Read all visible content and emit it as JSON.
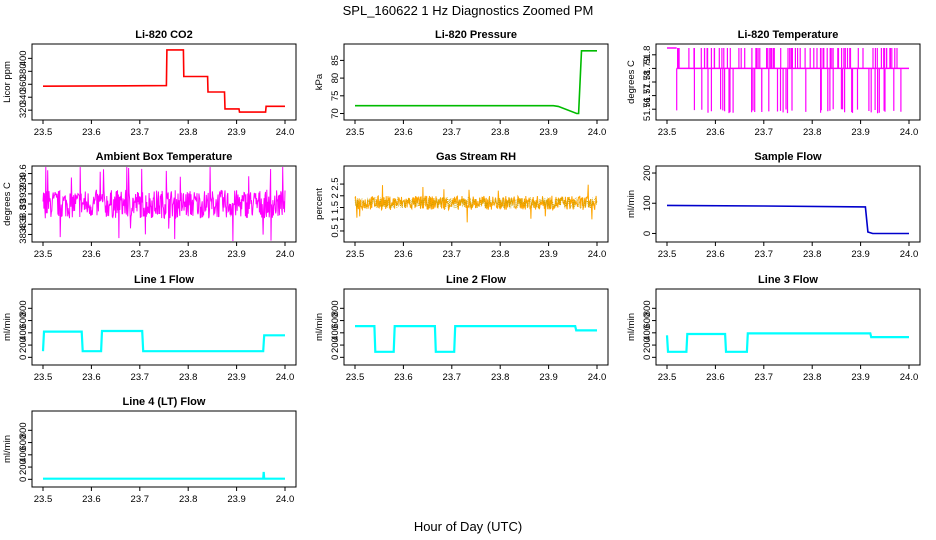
{
  "figure": {
    "title": "SPL_160622  1 Hz Diagnostics Zoomed PM",
    "xlabel": "Hour of Day (UTC)"
  },
  "chart_data": [
    {
      "type": "line",
      "title": "Li-820 CO2",
      "ylabel": "Licor ppm",
      "color": "#ff0000",
      "xlim": [
        23.5,
        24.0
      ],
      "ylim": [
        311,
        416
      ],
      "xticks": [
        "23.5",
        "23.6",
        "23.7",
        "23.8",
        "23.9",
        "24.0"
      ],
      "yticks": [
        320,
        340,
        360,
        380,
        400
      ],
      "x": [
        23.5,
        23.755,
        23.756,
        23.79,
        23.791,
        23.84,
        23.841,
        23.875,
        23.876,
        23.905,
        23.906,
        23.96,
        23.961,
        24.0
      ],
      "y": [
        357,
        358,
        413,
        413,
        372,
        372,
        348,
        348,
        322,
        322,
        317,
        317,
        326,
        326
      ]
    },
    {
      "type": "line",
      "title": "Li-820 Pressure",
      "ylabel": "kPa",
      "color": "#00bb00",
      "xlim": [
        23.5,
        24.0
      ],
      "ylim": [
        69.3,
        88.5
      ],
      "xticks": [
        "23.5",
        "23.6",
        "23.7",
        "23.8",
        "23.9",
        "24.0"
      ],
      "yticks": [
        70,
        75,
        80,
        85
      ],
      "x": [
        23.5,
        23.91,
        23.92,
        23.958,
        23.962,
        23.968,
        24.0
      ],
      "y": [
        72.2,
        72.2,
        72.0,
        70.0,
        70.0,
        87.7,
        87.7
      ]
    },
    {
      "type": "line",
      "title": "Li-820 Temperature",
      "ylabel": "degrees C",
      "color": "#ff00ff",
      "xlim": [
        23.5,
        24.0
      ],
      "ylim": [
        51.755,
        51.805
      ],
      "xticks": [
        "23.5",
        "23.6",
        "23.7",
        "23.8",
        "23.9",
        "24.0"
      ],
      "yticks": [
        51.76,
        51.77,
        51.78,
        51.79,
        51.8
      ],
      "baseline": 51.79,
      "low": 51.76,
      "high": 51.805
    },
    {
      "type": "line",
      "title": "Ambient Box Temperature",
      "ylabel": "degrees C",
      "color": "#ff00ff",
      "xlim": [
        23.5,
        24.0
      ],
      "ylim": [
        38.33,
        39.67
      ],
      "xticks": [
        "23.5",
        "23.6",
        "23.7",
        "23.8",
        "23.9",
        "24.0"
      ],
      "yticks": [
        38.4,
        38.6,
        38.8,
        39.0,
        39.2,
        39.4,
        39.6
      ],
      "center": 39.0,
      "amplitude": 0.28
    },
    {
      "type": "line",
      "title": "Gas Stream RH",
      "ylabel": "percent",
      "color": "#ffa500",
      "xlim": [
        23.5,
        24.0
      ],
      "ylim": [
        0.2,
        3.1
      ],
      "xticks": [
        "23.5",
        "23.6",
        "23.7",
        "23.8",
        "23.9",
        "24.0"
      ],
      "yticks": [
        0.5,
        1.0,
        1.5,
        2.0,
        2.5
      ],
      "center": 1.7,
      "amplitude": 0.3
    },
    {
      "type": "line",
      "title": "Sample Flow",
      "ylabel": "ml/min",
      "color": "#0000cc",
      "xlim": [
        23.5,
        24.0
      ],
      "ylim": [
        -15,
        210
      ],
      "xticks": [
        "23.5",
        "23.6",
        "23.7",
        "23.8",
        "23.9",
        "24.0"
      ],
      "yticks": [
        0,
        100,
        200
      ],
      "x": [
        23.5,
        23.7,
        23.91,
        23.915,
        23.925,
        24.0
      ],
      "y": [
        93,
        91,
        88,
        5,
        0,
        0
      ]
    },
    {
      "type": "line",
      "title": "Line 1 Flow",
      "ylabel": "ml/min",
      "color": "#00ffff",
      "xlim": [
        23.5,
        24.0
      ],
      "ylim": [
        -60,
        1050
      ],
      "xticks": [
        "23.5",
        "23.6",
        "23.7",
        "23.8",
        "23.9",
        "24.0"
      ],
      "yticks": [
        0,
        200,
        400,
        600,
        800
      ],
      "x": [
        23.5,
        23.502,
        23.58,
        23.582,
        23.62,
        23.622,
        23.705,
        23.707,
        23.955,
        23.957,
        24.0
      ],
      "y": [
        100,
        420,
        420,
        100,
        100,
        430,
        430,
        100,
        100,
        360,
        360
      ]
    },
    {
      "type": "line",
      "title": "Line 2 Flow",
      "ylabel": "ml/min",
      "color": "#00ffff",
      "xlim": [
        23.5,
        24.0
      ],
      "ylim": [
        -60,
        1050
      ],
      "xticks": [
        "23.5",
        "23.6",
        "23.7",
        "23.8",
        "23.9",
        "24.0"
      ],
      "yticks": [
        0,
        200,
        400,
        600,
        800
      ],
      "x": [
        23.5,
        23.54,
        23.542,
        23.58,
        23.582,
        23.665,
        23.667,
        23.705,
        23.707,
        23.955,
        23.957,
        24.0
      ],
      "y": [
        510,
        510,
        90,
        90,
        510,
        510,
        90,
        90,
        510,
        510,
        440,
        440
      ]
    },
    {
      "type": "line",
      "title": "Line 3 Flow",
      "ylabel": "ml/min",
      "color": "#00ffff",
      "xlim": [
        23.5,
        24.0
      ],
      "ylim": [
        -60,
        1050
      ],
      "xticks": [
        "23.5",
        "23.6",
        "23.7",
        "23.8",
        "23.9",
        "24.0"
      ],
      "yticks": [
        0,
        200,
        400,
        600,
        800
      ],
      "x": [
        23.5,
        23.502,
        23.54,
        23.542,
        23.62,
        23.622,
        23.665,
        23.667,
        23.92,
        23.922,
        24.0
      ],
      "y": [
        360,
        90,
        90,
        380,
        380,
        90,
        90,
        390,
        390,
        330,
        330
      ]
    },
    {
      "type": "line",
      "title": "Line 4 (LT) Flow",
      "ylabel": "ml/min",
      "color": "#00ffff",
      "xlim": [
        23.5,
        24.0
      ],
      "ylim": [
        -60,
        1050
      ],
      "xticks": [
        "23.5",
        "23.6",
        "23.7",
        "23.8",
        "23.9",
        "24.0"
      ],
      "yticks": [
        0,
        200,
        400,
        600,
        800
      ],
      "x": [
        23.5,
        23.955,
        23.956,
        23.957,
        23.958,
        24.0
      ],
      "y": [
        10,
        10,
        120,
        10,
        10,
        10
      ]
    }
  ]
}
